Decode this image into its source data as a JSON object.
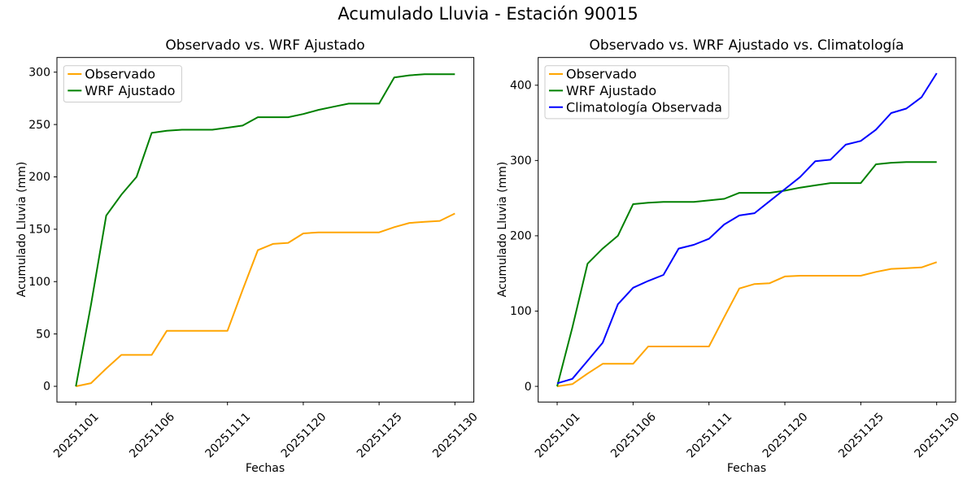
{
  "figure": {
    "title": "Acumulado Lluvia - Estación 90015"
  },
  "chart_data": [
    {
      "type": "line",
      "title": "Observado vs. WRF Ajustado",
      "xlabel": "Fechas",
      "ylabel": "Acumulado Lluvia (mm)",
      "xtick_labels": [
        "20251101",
        "20251106",
        "20251111",
        "20251120",
        "20251125",
        "20251130"
      ],
      "xtick_positions": [
        0,
        5,
        10,
        15,
        20,
        25
      ],
      "yticks": [
        0,
        50,
        100,
        150,
        200,
        250,
        300
      ],
      "xlim": [
        -1.25,
        26.25
      ],
      "ylim": [
        -15,
        314
      ],
      "grid": false,
      "legend_position": "upper left",
      "series": [
        {
          "name": "Observado",
          "color": "#FFA500",
          "values": [
            0,
            3,
            17,
            30,
            30,
            30,
            53,
            53,
            53,
            53,
            53,
            92,
            130,
            136,
            137,
            146,
            147,
            147,
            147,
            147,
            147,
            152,
            156,
            157,
            158,
            165
          ]
        },
        {
          "name": "WRF Ajustado",
          "color": "#008000",
          "values": [
            0,
            78,
            163,
            183,
            200,
            242,
            244,
            245,
            245,
            245,
            247,
            249,
            257,
            257,
            257,
            260,
            264,
            267,
            270,
            270,
            270,
            295,
            297,
            298,
            298,
            298
          ]
        }
      ]
    },
    {
      "type": "line",
      "title": "Observado vs. WRF Ajustado vs. Climatología",
      "xlabel": "Fechas",
      "ylabel": "Acumulado Lluvia (mm)",
      "xtick_labels": [
        "20251101",
        "20251106",
        "20251111",
        "20251120",
        "20251125",
        "20251130"
      ],
      "xtick_positions": [
        0,
        5,
        10,
        15,
        20,
        25
      ],
      "yticks": [
        0,
        100,
        200,
        300,
        400
      ],
      "xlim": [
        -1.25,
        26.25
      ],
      "ylim": [
        -20.8,
        436.8
      ],
      "grid": false,
      "legend_position": "upper left",
      "series": [
        {
          "name": "Observado",
          "color": "#FFA500",
          "values": [
            0,
            3,
            17,
            30,
            30,
            30,
            53,
            53,
            53,
            53,
            53,
            92,
            130,
            136,
            137,
            146,
            147,
            147,
            147,
            147,
            147,
            152,
            156,
            157,
            158,
            165
          ]
        },
        {
          "name": "WRF Ajustado",
          "color": "#008000",
          "values": [
            0,
            78,
            163,
            183,
            200,
            242,
            244,
            245,
            245,
            245,
            247,
            249,
            257,
            257,
            257,
            260,
            264,
            267,
            270,
            270,
            270,
            295,
            297,
            298,
            298,
            298
          ]
        },
        {
          "name": "Climatología Observada",
          "color": "#0000FF",
          "values": [
            4,
            10,
            34,
            58,
            109,
            131,
            140,
            148,
            183,
            188,
            196,
            215,
            227,
            230,
            246,
            262,
            278,
            299,
            301,
            321,
            326,
            341,
            363,
            369,
            384,
            416
          ]
        }
      ]
    }
  ]
}
